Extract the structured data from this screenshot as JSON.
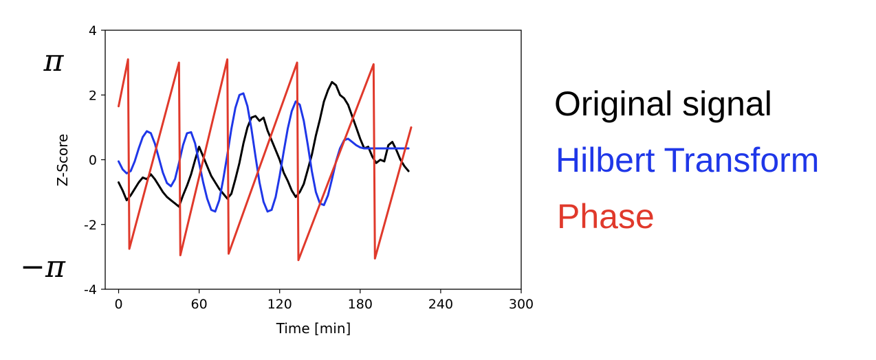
{
  "chart_data": {
    "type": "line",
    "title": "",
    "xlabel": "Time [min]",
    "ylabel": "Z-Score",
    "xlim": [
      -10,
      300
    ],
    "ylim": [
      -4,
      4
    ],
    "x_ticks": [
      0,
      60,
      120,
      180,
      240,
      300
    ],
    "x_tick_labels": [
      "0",
      "60",
      "120",
      "180",
      "240",
      "300"
    ],
    "y_ticks": [
      -4,
      -2,
      0,
      2,
      4
    ],
    "y_tick_labels": [
      "-4",
      "-2",
      "0",
      "2",
      "4"
    ],
    "grid": false,
    "legend_position": "right",
    "annotations": {
      "pi_top": "π",
      "pi_bottom": "−π"
    },
    "series": [
      {
        "name": "Original signal",
        "color": "#000000",
        "x": [
          0,
          3,
          6,
          9,
          12,
          15,
          18,
          21,
          24,
          27,
          30,
          33,
          36,
          39,
          42,
          45,
          48,
          51,
          54,
          57,
          60,
          63,
          66,
          69,
          72,
          75,
          78,
          81,
          84,
          87,
          90,
          93,
          96,
          99,
          102,
          105,
          108,
          111,
          114,
          117,
          120,
          123,
          126,
          129,
          132,
          135,
          138,
          141,
          144,
          147,
          150,
          153,
          156,
          159,
          162,
          165,
          168,
          171,
          174,
          177,
          180,
          183,
          186,
          189,
          192,
          195,
          198,
          201,
          204,
          207,
          210,
          213,
          216
        ],
        "values": [
          -0.7,
          -0.95,
          -1.25,
          -1.1,
          -0.9,
          -0.7,
          -0.55,
          -0.6,
          -0.45,
          -0.6,
          -0.8,
          -1.0,
          -1.15,
          -1.25,
          -1.35,
          -1.45,
          -1.1,
          -0.8,
          -0.45,
          0.0,
          0.4,
          0.1,
          -0.2,
          -0.5,
          -0.7,
          -0.9,
          -1.05,
          -1.2,
          -1.05,
          -0.6,
          -0.1,
          0.5,
          1.0,
          1.3,
          1.35,
          1.2,
          1.3,
          0.9,
          0.6,
          0.3,
          0.0,
          -0.4,
          -0.65,
          -0.95,
          -1.15,
          -1.0,
          -0.75,
          -0.3,
          0.15,
          0.75,
          1.25,
          1.8,
          2.15,
          2.4,
          2.3,
          2.0,
          1.9,
          1.7,
          1.35,
          1.0,
          0.65,
          0.35,
          0.4,
          0.1,
          -0.1,
          0.0,
          -0.05,
          0.45,
          0.55,
          0.3,
          0.0,
          -0.2,
          -0.35
        ]
      },
      {
        "name": "Hilbert Transform",
        "color": "#1f37e8",
        "x": [
          0,
          3,
          6,
          9,
          12,
          15,
          18,
          21,
          24,
          27,
          30,
          33,
          36,
          39,
          42,
          45,
          48,
          51,
          54,
          57,
          60,
          63,
          66,
          69,
          72,
          75,
          78,
          81,
          84,
          87,
          90,
          93,
          96,
          99,
          102,
          105,
          108,
          111,
          114,
          117,
          120,
          123,
          126,
          129,
          132,
          135,
          138,
          141,
          144,
          147,
          150,
          153,
          156,
          159,
          162,
          165,
          168,
          171,
          174,
          177,
          180,
          183,
          186,
          189,
          192,
          195,
          198,
          201,
          204,
          207,
          210,
          213,
          216
        ],
        "values": [
          -0.05,
          -0.3,
          -0.42,
          -0.35,
          -0.05,
          0.35,
          0.7,
          0.88,
          0.82,
          0.5,
          0.05,
          -0.4,
          -0.72,
          -0.82,
          -0.6,
          -0.1,
          0.45,
          0.82,
          0.85,
          0.5,
          -0.1,
          -0.7,
          -1.2,
          -1.55,
          -1.6,
          -1.25,
          -0.6,
          0.15,
          0.95,
          1.6,
          2.0,
          2.05,
          1.65,
          0.95,
          0.1,
          -0.7,
          -1.3,
          -1.6,
          -1.55,
          -1.15,
          -0.5,
          0.25,
          0.95,
          1.5,
          1.8,
          1.7,
          1.2,
          0.45,
          -0.35,
          -1.0,
          -1.35,
          -1.4,
          -1.1,
          -0.6,
          -0.05,
          0.35,
          0.6,
          0.65,
          0.55,
          0.45,
          0.38,
          0.35,
          0.35,
          0.35,
          0.35,
          0.35,
          0.35,
          0.35,
          0.35,
          0.35,
          0.35,
          0.35,
          0.35
        ]
      },
      {
        "name": "Phase",
        "color": "#e0392b",
        "x": [
          0,
          7,
          8,
          45,
          46,
          81,
          82,
          133,
          134,
          190,
          191,
          218
        ],
        "values": [
          1.65,
          3.1,
          -2.75,
          3.0,
          -2.95,
          3.1,
          -2.9,
          3.0,
          -3.1,
          2.95,
          -3.05,
          1.0
        ]
      }
    ]
  }
}
